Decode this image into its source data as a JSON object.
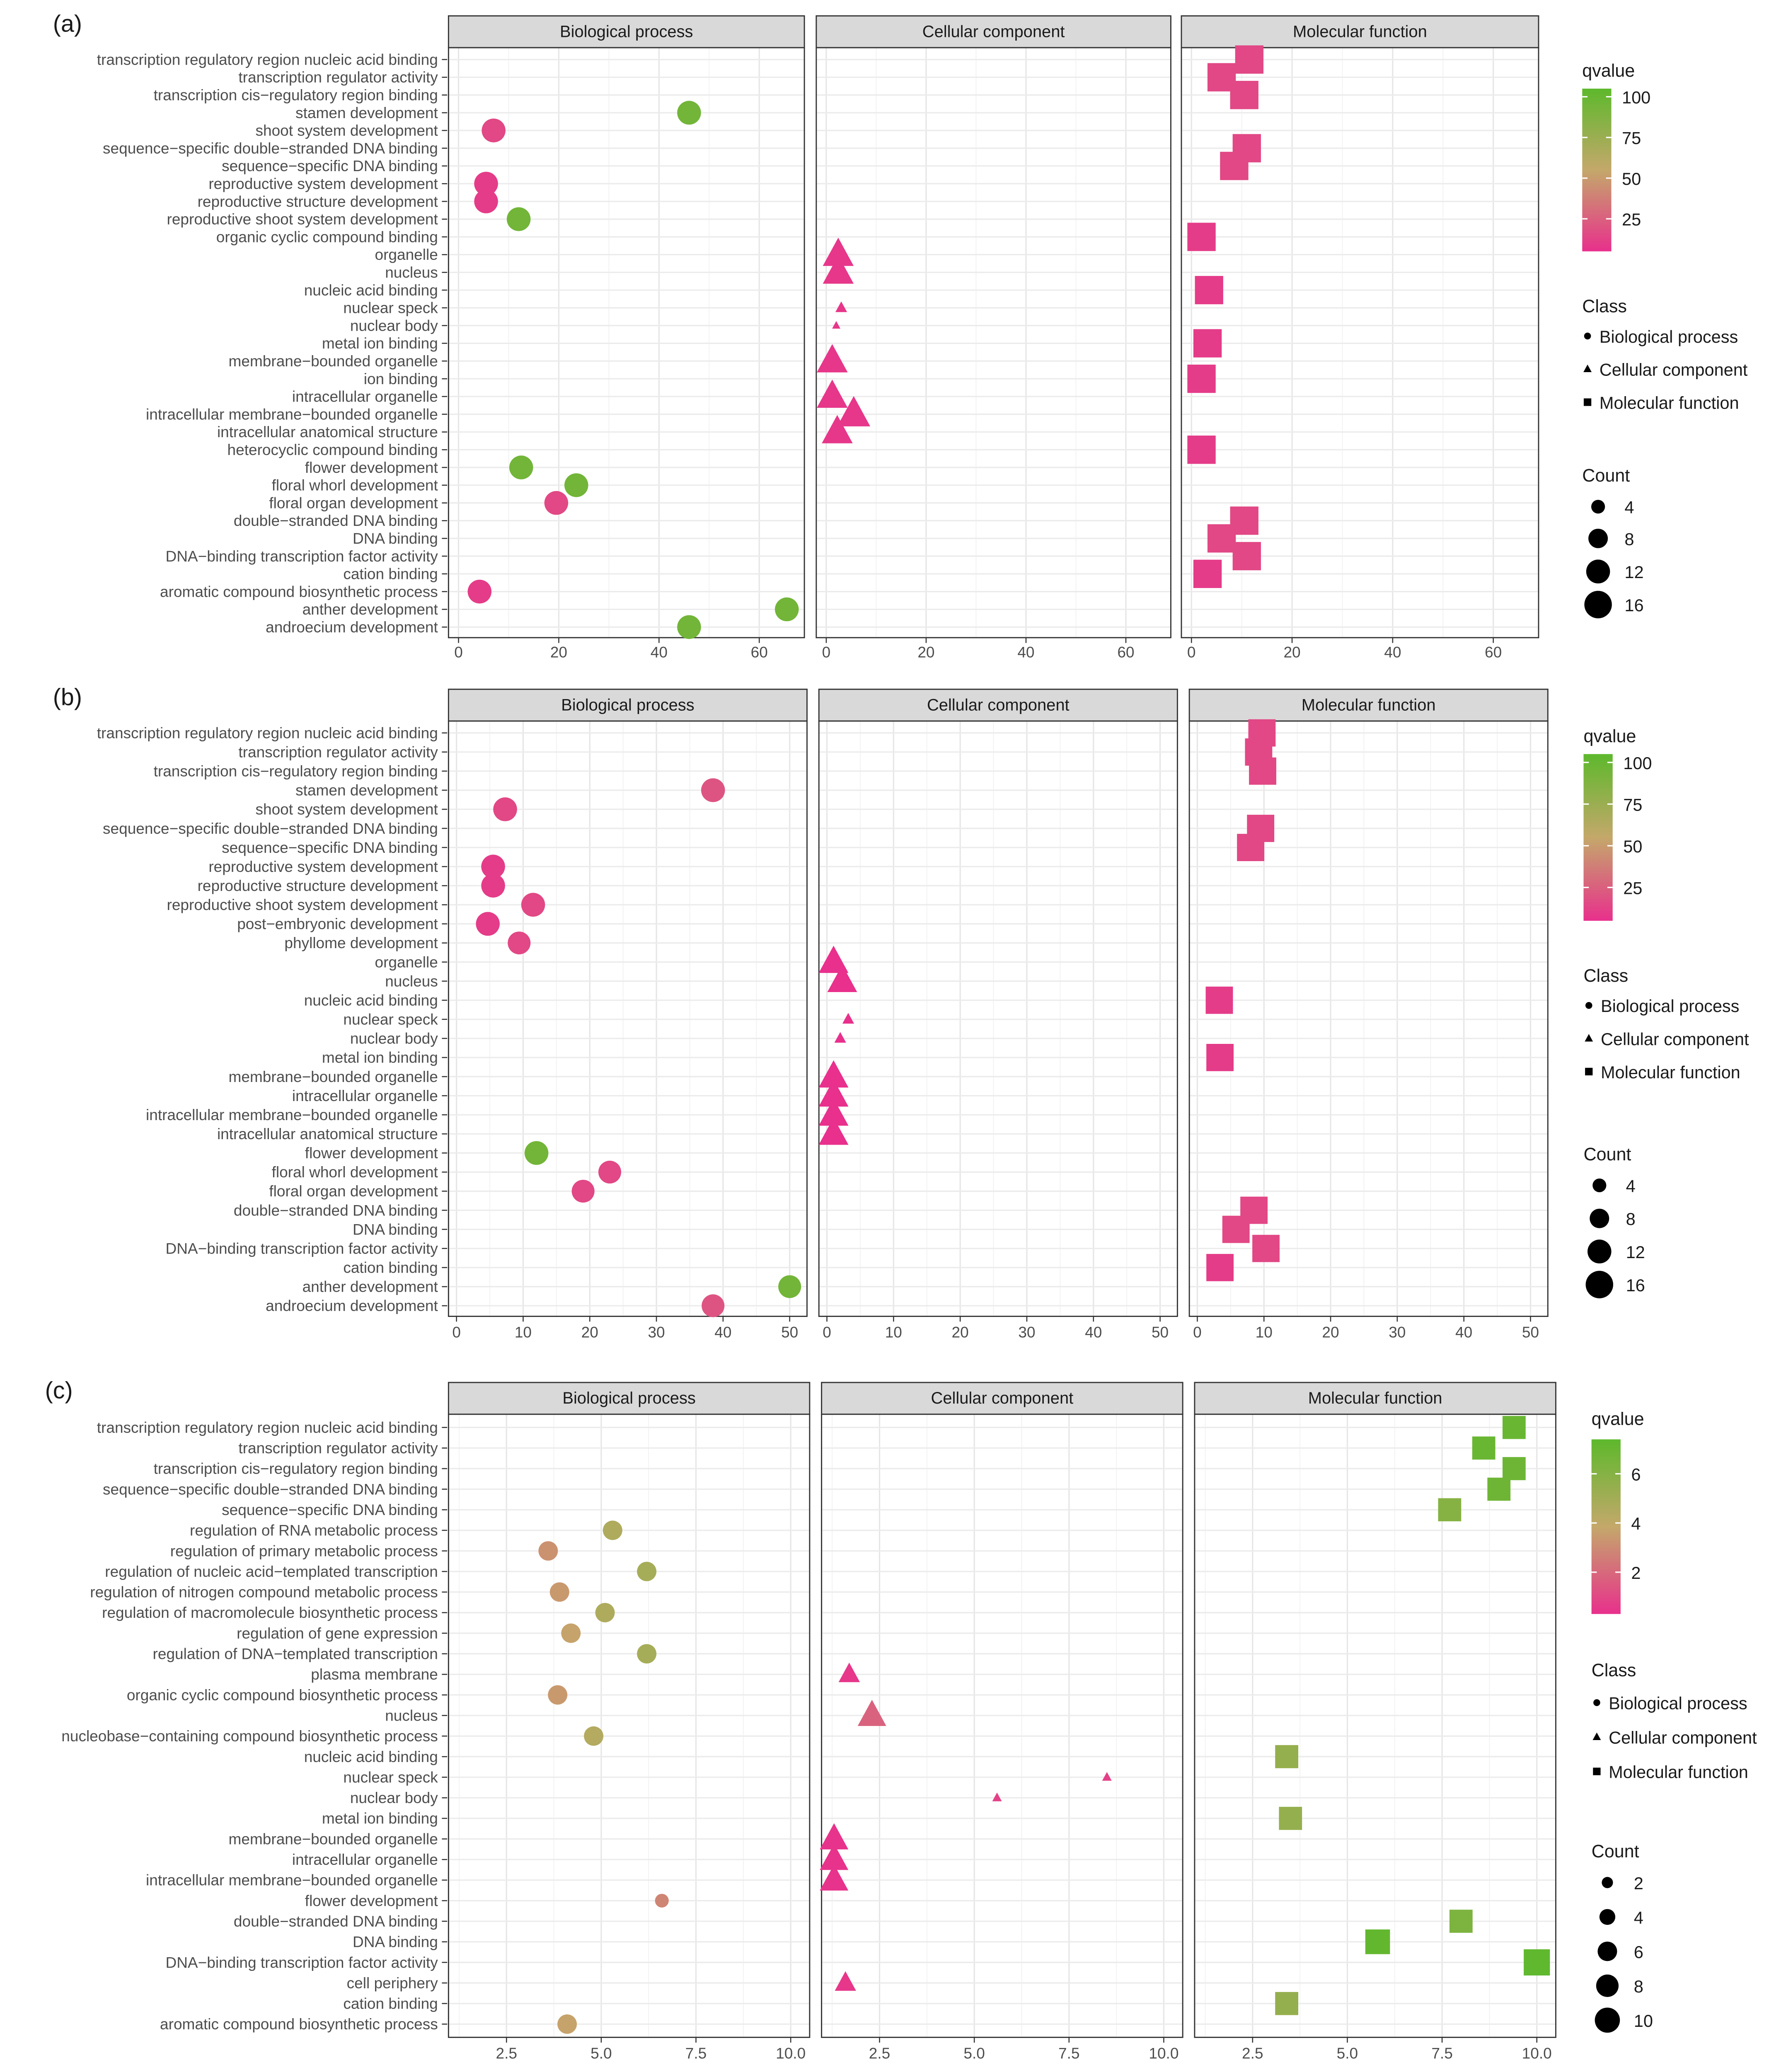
{
  "colors": {
    "low": "#e8308c",
    "mid": "#c4a86a",
    "high": "#5db82c"
  },
  "chart_data": [
    {
      "label": "(a)",
      "type": "scatter",
      "facets": [
        "Biological process",
        "Cellular component",
        "Molecular function"
      ],
      "xlim": [
        -2,
        69
      ],
      "xticks": [
        "0",
        "20",
        "40",
        "60"
      ],
      "terms": [
        "transcription regulatory region nucleic acid binding",
        "transcription regulator activity",
        "transcription cis−regulatory region binding",
        "stamen development",
        "shoot system development",
        "sequence−specific double−stranded DNA binding",
        "sequence−specific DNA binding",
        "reproductive system development",
        "reproductive structure development",
        "reproductive shoot system development",
        "organic cyclic compound binding",
        "organelle",
        "nucleus",
        "nucleic acid binding",
        "nuclear speck",
        "nuclear body",
        "metal ion binding",
        "membrane−bounded organelle",
        "ion binding",
        "intracellular organelle",
        "intracellular membrane−bounded organelle",
        "intracellular anatomical structure",
        "heterocyclic compound binding",
        "flower development",
        "floral whorl development",
        "floral organ development",
        "double−stranded DNA binding",
        "DNA binding",
        "DNA−binding transcription factor activity",
        "cation binding",
        "aromatic compound biosynthetic process",
        "anther development",
        "androecium development"
      ],
      "point_fields": [
        "term_index",
        "class_index",
        "x",
        "count",
        "qvalue"
      ],
      "points": [
        [
          3,
          0,
          46,
          12,
          95
        ],
        [
          4,
          0,
          7,
          12,
          15
        ],
        [
          7,
          0,
          5.5,
          12,
          10
        ],
        [
          8,
          0,
          5.5,
          12,
          10
        ],
        [
          9,
          0,
          12,
          12,
          95
        ],
        [
          23,
          0,
          12.5,
          12,
          95
        ],
        [
          24,
          0,
          23.5,
          12,
          95
        ],
        [
          25,
          0,
          19.5,
          12,
          15
        ],
        [
          30,
          0,
          4.2,
          12,
          10
        ],
        [
          31,
          0,
          65.5,
          12,
          95
        ],
        [
          32,
          0,
          46,
          12,
          95
        ],
        [
          11,
          1,
          2.4,
          14,
          8
        ],
        [
          12,
          1,
          2.4,
          14,
          8
        ],
        [
          14,
          1,
          3,
          2,
          8
        ],
        [
          15,
          1,
          2,
          1,
          8
        ],
        [
          17,
          1,
          1.2,
          14,
          8
        ],
        [
          19,
          1,
          1.2,
          14,
          8
        ],
        [
          20,
          1,
          5.5,
          16,
          8
        ],
        [
          21,
          1,
          2.2,
          14,
          8
        ],
        [
          0,
          2,
          11.5,
          14,
          15
        ],
        [
          1,
          2,
          6,
          14,
          15
        ],
        [
          2,
          2,
          10.5,
          14,
          15
        ],
        [
          5,
          2,
          11,
          14,
          15
        ],
        [
          6,
          2,
          8.5,
          14,
          15
        ],
        [
          10,
          2,
          2,
          14,
          10
        ],
        [
          13,
          2,
          3.5,
          14,
          10
        ],
        [
          16,
          2,
          3.2,
          14,
          10
        ],
        [
          18,
          2,
          2,
          14,
          10
        ],
        [
          22,
          2,
          2,
          14,
          10
        ],
        [
          26,
          2,
          10.5,
          14,
          15
        ],
        [
          27,
          2,
          6,
          14,
          15
        ],
        [
          28,
          2,
          11,
          14,
          15
        ],
        [
          29,
          2,
          3.2,
          14,
          10
        ]
      ],
      "qvalue_legend": {
        "title": "qvalue",
        "ticks": [
          "25",
          "50",
          "75",
          "100"
        ],
        "lim": [
          5,
          105
        ]
      },
      "class_legend": {
        "title": "Class",
        "items": [
          "Biological process",
          "Cellular component",
          "Molecular function"
        ]
      },
      "count_legend": {
        "title": "Count",
        "values": [
          "4",
          "8",
          "12",
          "16"
        ]
      }
    },
    {
      "label": "(b)",
      "type": "scatter",
      "facets": [
        "Biological process",
        "Cellular component",
        "Molecular function"
      ],
      "xlim": [
        -1.2,
        52.6
      ],
      "xticks": [
        "0",
        "10",
        "20",
        "30",
        "40",
        "50"
      ],
      "terms": [
        "transcription regulatory region nucleic acid binding",
        "transcription regulator activity",
        "transcription cis−regulatory region binding",
        "stamen development",
        "shoot system development",
        "sequence−specific double−stranded DNA binding",
        "sequence−specific DNA binding",
        "reproductive system development",
        "reproductive structure development",
        "reproductive shoot system development",
        "post−embryonic development",
        "phyllome development",
        "organelle",
        "nucleus",
        "nucleic acid binding",
        "nuclear speck",
        "nuclear body",
        "metal ion binding",
        "membrane−bounded organelle",
        "intracellular organelle",
        "intracellular membrane−bounded organelle",
        "intracellular anatomical structure",
        "flower development",
        "floral whorl development",
        "floral organ development",
        "double−stranded DNA binding",
        "DNA binding",
        "DNA−binding transcription factor activity",
        "cation binding",
        "anther development",
        "androecium development"
      ],
      "point_fields": [
        "term_index",
        "class_index",
        "x",
        "count",
        "qvalue"
      ],
      "points": [
        [
          3,
          0,
          38.5,
          12,
          20
        ],
        [
          4,
          0,
          7.3,
          12,
          15
        ],
        [
          7,
          0,
          5.5,
          12,
          10
        ],
        [
          8,
          0,
          5.5,
          12,
          10
        ],
        [
          9,
          0,
          11.5,
          12,
          15
        ],
        [
          10,
          0,
          4.7,
          12,
          10
        ],
        [
          11,
          0,
          9.4,
          11,
          15
        ],
        [
          22,
          0,
          12,
          12,
          95
        ],
        [
          23,
          0,
          23,
          11,
          15
        ],
        [
          24,
          0,
          19,
          11,
          15
        ],
        [
          29,
          0,
          50,
          11,
          95
        ],
        [
          30,
          0,
          38.5,
          11,
          20
        ],
        [
          12,
          1,
          1,
          13,
          5
        ],
        [
          13,
          1,
          2.3,
          13,
          5
        ],
        [
          15,
          1,
          3.2,
          2,
          5
        ],
        [
          16,
          1,
          2,
          2,
          5
        ],
        [
          18,
          1,
          1,
          13,
          5
        ],
        [
          19,
          1,
          1,
          13,
          5
        ],
        [
          20,
          1,
          1,
          13,
          5
        ],
        [
          21,
          1,
          1,
          13,
          5
        ],
        [
          0,
          2,
          9.7,
          13,
          15
        ],
        [
          1,
          2,
          9.2,
          13,
          15
        ],
        [
          2,
          2,
          9.8,
          13,
          15
        ],
        [
          5,
          2,
          9.5,
          13,
          15
        ],
        [
          6,
          2,
          8,
          13,
          15
        ],
        [
          14,
          2,
          3.3,
          13,
          10
        ],
        [
          17,
          2,
          3.4,
          13,
          10
        ],
        [
          25,
          2,
          8.5,
          13,
          15
        ],
        [
          26,
          2,
          5.8,
          13,
          15
        ],
        [
          27,
          2,
          10.3,
          13,
          15
        ],
        [
          28,
          2,
          3.4,
          13,
          10
        ]
      ],
      "qvalue_legend": {
        "title": "qvalue",
        "ticks": [
          "25",
          "50",
          "75",
          "100"
        ],
        "lim": [
          5,
          105
        ]
      },
      "class_legend": {
        "title": "Class",
        "items": [
          "Biological process",
          "Cellular component",
          "Molecular function"
        ]
      },
      "count_legend": {
        "title": "Count",
        "values": [
          "4",
          "8",
          "12",
          "16"
        ]
      }
    },
    {
      "label": "(c)",
      "type": "scatter",
      "facets": [
        "Biological process",
        "Cellular component",
        "Molecular function"
      ],
      "xlim": [
        0.97,
        10.5
      ],
      "xticks": [
        "2.5",
        "5.0",
        "7.5",
        "10.0"
      ],
      "terms": [
        "transcription regulatory region nucleic acid binding",
        "transcription regulator activity",
        "transcription cis−regulatory region binding",
        "sequence−specific double−stranded DNA binding",
        "sequence−specific DNA binding",
        "regulation of RNA metabolic process",
        "regulation of primary metabolic process",
        "regulation of nucleic acid−templated transcription",
        "regulation of nitrogen compound metabolic process",
        "regulation of macromolecule biosynthetic process",
        "regulation of gene expression",
        "regulation of DNA−templated transcription",
        "plasma membrane",
        "organic cyclic compound biosynthetic process",
        "nucleus",
        "nucleobase−containing compound biosynthetic process",
        "nucleic acid binding",
        "nuclear speck",
        "nuclear body",
        "metal ion binding",
        "membrane−bounded organelle",
        "intracellular organelle",
        "intracellular membrane−bounded organelle",
        "flower development",
        "double−stranded DNA binding",
        "DNA binding",
        "DNA−binding transcription factor activity",
        "cell periphery",
        "cation binding",
        "aromatic compound biosynthetic process"
      ],
      "point_fields": [
        "term_index",
        "class_index",
        "x",
        "count",
        "qvalue"
      ],
      "points": [
        [
          5,
          0,
          5.3,
          6,
          4.6
        ],
        [
          6,
          0,
          3.6,
          6,
          3.2
        ],
        [
          7,
          0,
          6.2,
          6,
          4.9
        ],
        [
          8,
          0,
          3.9,
          6,
          3.4
        ],
        [
          9,
          0,
          5.1,
          6,
          4.6
        ],
        [
          10,
          0,
          4.2,
          6,
          3.7
        ],
        [
          11,
          0,
          6.2,
          6,
          4.9
        ],
        [
          13,
          0,
          3.85,
          6,
          3.4
        ],
        [
          15,
          0,
          4.8,
          6,
          4.4
        ],
        [
          23,
          0,
          6.6,
          3,
          2.8
        ],
        [
          29,
          0,
          4.1,
          6,
          3.7
        ],
        [
          12,
          1,
          1.7,
          5,
          0.5
        ],
        [
          14,
          1,
          2.3,
          9,
          1.8
        ],
        [
          17,
          1,
          8.5,
          1,
          0.8
        ],
        [
          18,
          1,
          5.6,
          1,
          0.8
        ],
        [
          20,
          1,
          1.3,
          9,
          0.4
        ],
        [
          21,
          1,
          1.3,
          9,
          0.4
        ],
        [
          22,
          1,
          1.3,
          9,
          0.4
        ],
        [
          27,
          1,
          1.6,
          5,
          0.5
        ],
        [
          0,
          2,
          9.4,
          7,
          7
        ],
        [
          1,
          2,
          8.6,
          7,
          7
        ],
        [
          2,
          2,
          9.4,
          7,
          6.8
        ],
        [
          3,
          2,
          9.0,
          7,
          6.8
        ],
        [
          4,
          2,
          7.7,
          7,
          6
        ],
        [
          16,
          2,
          3.4,
          7,
          5.5
        ],
        [
          19,
          2,
          3.5,
          7,
          5.5
        ],
        [
          24,
          2,
          8.0,
          7,
          6.3
        ],
        [
          25,
          2,
          5.8,
          8,
          7.2
        ],
        [
          26,
          2,
          10.0,
          9,
          7.3
        ],
        [
          28,
          2,
          3.4,
          7,
          5.5
        ]
      ],
      "qvalue_legend": {
        "title": "qvalue",
        "ticks": [
          "2",
          "4",
          "6"
        ],
        "lim": [
          0.3,
          7.4
        ]
      },
      "class_legend": {
        "title": "Class",
        "items": [
          "Biological process",
          "Cellular component",
          "Molecular function"
        ]
      },
      "count_legend": {
        "title": "Count",
        "values": [
          "2",
          "4",
          "6",
          "8",
          "10"
        ]
      }
    }
  ]
}
